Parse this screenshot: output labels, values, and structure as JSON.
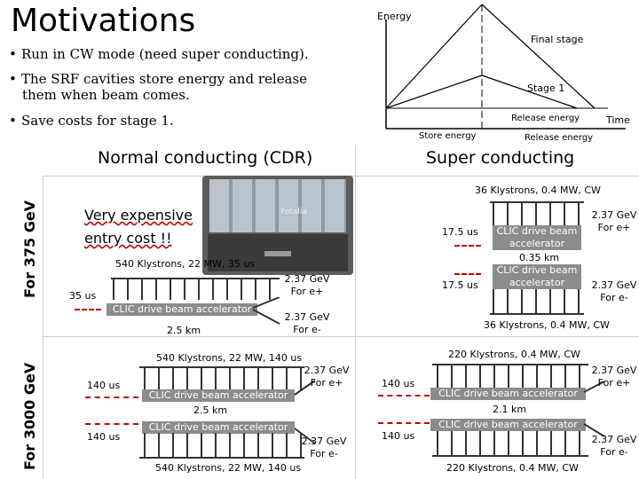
{
  "title": "Motivations",
  "bullets": [
    {
      "line1": "Run in CW mode (need super conducting).",
      "line2": ""
    },
    {
      "line1": "The SRF cavities store energy and release",
      "line2": "them when beam comes."
    },
    {
      "line1": "Save costs for stage 1.",
      "line2": ""
    }
  ],
  "energy_plot": {
    "y_label": "Energy",
    "x_label": "Time",
    "final_stage": "Final stage",
    "stage1": "Stage 1",
    "release_energy_top": "Release energy",
    "store_energy": "Store energy",
    "release_energy_bottom": "Release energy"
  },
  "columns": {
    "normal": "Normal conducting (CDR)",
    "super": "Super conducting"
  },
  "rows": {
    "r375": "For 375 GeV",
    "r3000": "For 3000 GeV"
  },
  "nc375": {
    "expensive_1": "Very expensive",
    "expensive_2": "entry cost !!",
    "klystrons": "540 Klystrons, 22 MW, 35 us",
    "pulse": "35 us",
    "accel": "CLIC drive beam accelerator",
    "length": "2.5 km",
    "e_plus_1": "2.37 GeV",
    "e_plus_2": "For e+",
    "e_minus_1": "2.37 GeV",
    "e_minus_2": "For e-",
    "photo_text": "Fotalia"
  },
  "sc375": {
    "klystrons_top": "36 Klystrons, 0.4 MW, CW",
    "pulse_top": "17.5 us",
    "accel_top_1": "CLIC drive beam",
    "accel_top_2": "accelerator",
    "length": "0.35 km",
    "pulse_bottom": "17.5 us",
    "accel_bot_1": "CLIC drive beam",
    "accel_bot_2": "accelerator",
    "e_plus_1": "2.37 GeV",
    "e_plus_2": "For e+",
    "e_minus_1": "2.37 GeV",
    "e_minus_2": "For e-",
    "klystrons_bottom": "36 Klystrons, 0.4 MW, CW"
  },
  "nc3000": {
    "klystrons_top": "540 Klystrons, 22 MW, 140 us",
    "pulse_top": "140 us",
    "accel_top": "CLIC drive beam accelerator",
    "length": "2.5 km",
    "pulse_bottom": "140 us",
    "accel_bottom": "CLIC drive beam accelerator",
    "e_plus_1": "2.37 GeV",
    "e_plus_2": "For e+",
    "e_minus_1": "2.37 GeV",
    "e_minus_2": "For e-",
    "klystrons_bottom": "540 Klystrons, 22 MW, 140 us"
  },
  "sc3000": {
    "klystrons_top": "220 Klystrons, 0.4 MW, CW",
    "pulse_top": "140 us",
    "accel_top": "CLIC drive beam accelerator",
    "length": "2.1 km",
    "pulse_bottom": "140 us",
    "accel_bottom": "CLIC drive beam accelerator",
    "e_plus_1": "2.37 GeV",
    "e_plus_2": "For e+",
    "e_minus_1": "2.37 GeV",
    "e_minus_2": "For e-",
    "klystrons_bottom": "220 Klystrons, 0.4 MW, CW"
  },
  "colors": {
    "bar": "#8c8c8c",
    "pulse": "#c00000",
    "grid": "#cccccc"
  }
}
